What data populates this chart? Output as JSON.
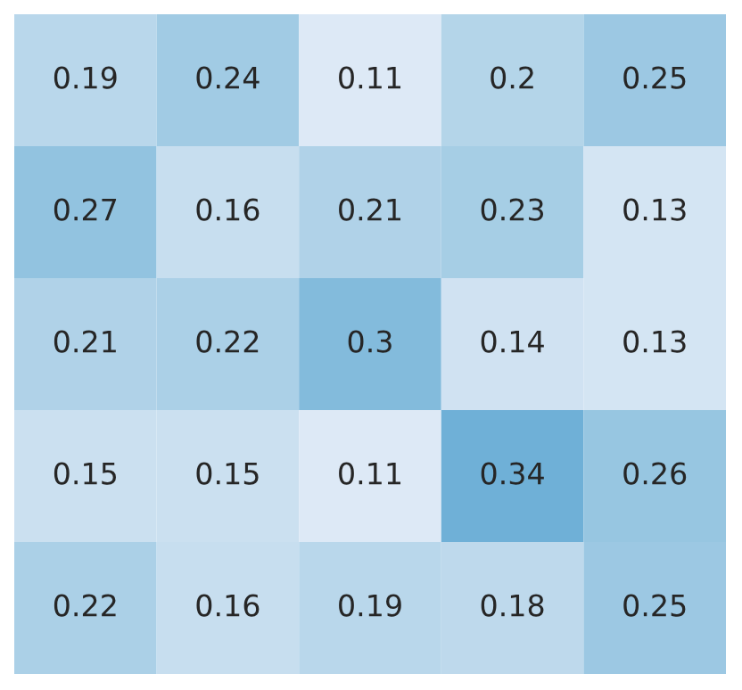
{
  "chart_data": {
    "type": "heatmap",
    "categories": [
      null,
      null,
      null,
      null,
      null
    ],
    "y_categories": [
      null,
      null,
      null,
      null,
      null
    ],
    "cells": [
      [
        0.19,
        0.24,
        0.11,
        0.2,
        0.25
      ],
      [
        0.27,
        0.16,
        0.21,
        0.23,
        0.13
      ],
      [
        0.21,
        0.22,
        0.3,
        0.14,
        0.13
      ],
      [
        0.15,
        0.15,
        0.11,
        0.34,
        0.26
      ],
      [
        0.22,
        0.16,
        0.19,
        0.18,
        0.25
      ]
    ],
    "data_labels": true
  }
}
